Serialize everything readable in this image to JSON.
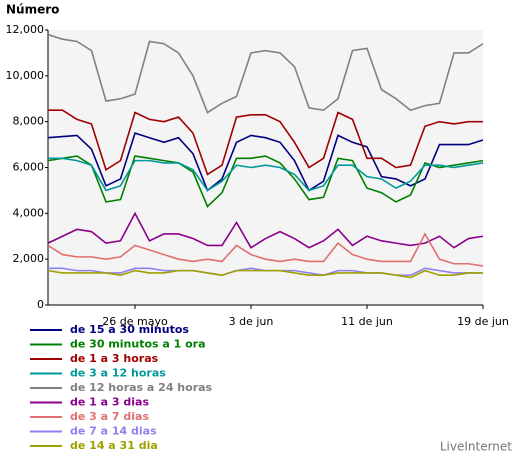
{
  "chart_data": {
    "type": "line",
    "title": "Número",
    "footer": "LiveInternet",
    "categories": [
      null,
      null,
      null,
      null,
      null,
      null,
      "26 de mayo",
      null,
      null,
      null,
      null,
      null,
      null,
      null,
      "3 de jun",
      null,
      null,
      null,
      null,
      null,
      null,
      null,
      "11 de jun",
      null,
      null,
      null,
      null,
      null,
      null,
      null,
      "19 de jun"
    ],
    "ylim": [
      0,
      12000
    ],
    "yticks": [
      0,
      {
        "value": 2000,
        "label": "2,000"
      },
      {
        "value": 4000,
        "label": "4,000"
      },
      {
        "value": 6000,
        "label": "6,000"
      },
      {
        "value": 8000,
        "label": "8,000"
      },
      {
        "value": 10000,
        "label": "10,000"
      },
      {
        "value": 12000,
        "label": "12,000"
      }
    ],
    "series": [
      {
        "name": "de 15 a 30 minutos",
        "color": "#000080",
        "values": [
          7300,
          7350,
          7400,
          6800,
          5200,
          5500,
          7500,
          7300,
          7100,
          7300,
          6600,
          5000,
          5500,
          7100,
          7400,
          7300,
          7100,
          6300,
          5000,
          5400,
          7400,
          7100,
          6900,
          5600,
          5500,
          5200,
          5500,
          7000,
          7000,
          7000,
          7200
        ]
      },
      {
        "name": "de 30 minutos a 1 ora",
        "color": "#008000",
        "values": [
          6300,
          6400,
          6500,
          6100,
          4500,
          4600,
          6500,
          6400,
          6300,
          6200,
          5800,
          4300,
          4900,
          6400,
          6400,
          6500,
          6200,
          5500,
          4600,
          4700,
          6400,
          6300,
          5100,
          4900,
          4500,
          4800,
          6200,
          6000,
          6100,
          6200,
          6300
        ]
      },
      {
        "name": "de 1 a 3 horas",
        "color": "#a00000",
        "values": [
          8500,
          8500,
          8100,
          7900,
          5900,
          6300,
          8400,
          8100,
          8000,
          8200,
          7500,
          5700,
          6100,
          8200,
          8300,
          8300,
          8000,
          7100,
          6000,
          6400,
          8400,
          8100,
          6400,
          6400,
          6000,
          6100,
          7800,
          8000,
          7900,
          8000,
          8000
        ]
      },
      {
        "name": "de 3 a 12 horas",
        "color": "#009999",
        "values": [
          6400,
          6400,
          6300,
          6100,
          5000,
          5200,
          6300,
          6300,
          6200,
          6200,
          5900,
          5000,
          5400,
          6100,
          6000,
          6100,
          6000,
          5700,
          5000,
          5200,
          6100,
          6100,
          5600,
          5500,
          5100,
          5400,
          6100,
          6100,
          6000,
          6100,
          6200
        ]
      },
      {
        "name": "de 12 horas a 24 horas",
        "color": "#808080",
        "values": [
          11800,
          11600,
          11500,
          11100,
          8900,
          9000,
          9200,
          11500,
          11400,
          11000,
          10000,
          8400,
          8800,
          9100,
          11000,
          11100,
          11000,
          10400,
          8600,
          8500,
          9000,
          11100,
          11200,
          9400,
          9000,
          8500,
          8700,
          8800,
          11000,
          11000,
          11400
        ]
      },
      {
        "name": "de 1 a 3 dias",
        "color": "#8b008b",
        "values": [
          2700,
          3000,
          3300,
          3200,
          2700,
          2800,
          4000,
          2800,
          3100,
          3100,
          2900,
          2600,
          2600,
          3600,
          2500,
          2900,
          3200,
          2900,
          2500,
          2800,
          3300,
          2600,
          3000,
          2800,
          2700,
          2600,
          2700,
          3000,
          2500,
          2900,
          3000
        ]
      },
      {
        "name": "de 3 a 7 dias",
        "color": "#e07070",
        "values": [
          2600,
          2200,
          2100,
          2100,
          2000,
          2100,
          2600,
          2400,
          2200,
          2000,
          1900,
          2000,
          1900,
          2600,
          2200,
          2000,
          1900,
          2000,
          1900,
          1900,
          2700,
          2200,
          2000,
          1900,
          1900,
          1900,
          3100,
          2000,
          1800,
          1800,
          1700
        ]
      },
      {
        "name": "de 7 a 14 dias",
        "color": "#9080f0",
        "values": [
          1600,
          1600,
          1500,
          1500,
          1400,
          1400,
          1600,
          1600,
          1500,
          1500,
          1500,
          1400,
          1300,
          1500,
          1600,
          1500,
          1500,
          1500,
          1400,
          1300,
          1500,
          1500,
          1400,
          1400,
          1300,
          1300,
          1600,
          1500,
          1400,
          1400,
          1400
        ]
      },
      {
        "name": "de 14 a 31 dia",
        "color": "#a0a000",
        "values": [
          1500,
          1400,
          1400,
          1400,
          1400,
          1300,
          1500,
          1400,
          1400,
          1500,
          1500,
          1400,
          1300,
          1500,
          1500,
          1500,
          1500,
          1400,
          1300,
          1300,
          1400,
          1400,
          1400,
          1400,
          1300,
          1200,
          1500,
          1300,
          1300,
          1400,
          1400
        ]
      }
    ]
  }
}
